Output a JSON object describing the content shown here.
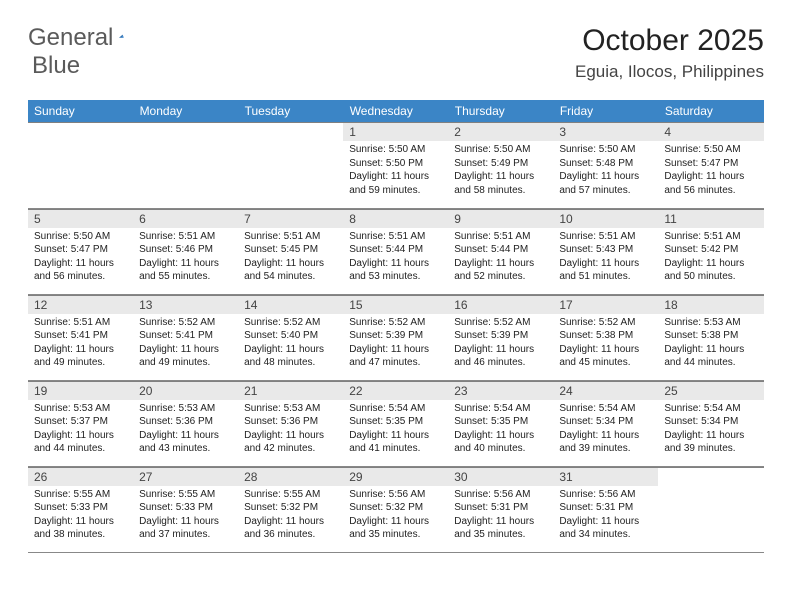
{
  "logo": {
    "text1": "General",
    "text2": "Blue"
  },
  "title": "October 2025",
  "location": "Eguia, Ilocos, Philippines",
  "colors": {
    "header_bg": "#3b85c6",
    "header_text": "#ffffff",
    "daynum_bg": "#e9e9e9",
    "border": "#808080",
    "logo_text": "#5a5a5a",
    "logo_icon": "#2f6fb0"
  },
  "dayHeaders": [
    "Sunday",
    "Monday",
    "Tuesday",
    "Wednesday",
    "Thursday",
    "Friday",
    "Saturday"
  ],
  "weeks": [
    [
      {
        "n": "",
        "sr": "",
        "ss": "",
        "dl": ""
      },
      {
        "n": "",
        "sr": "",
        "ss": "",
        "dl": ""
      },
      {
        "n": "",
        "sr": "",
        "ss": "",
        "dl": ""
      },
      {
        "n": "1",
        "sr": "5:50 AM",
        "ss": "5:50 PM",
        "dl": "11 hours and 59 minutes."
      },
      {
        "n": "2",
        "sr": "5:50 AM",
        "ss": "5:49 PM",
        "dl": "11 hours and 58 minutes."
      },
      {
        "n": "3",
        "sr": "5:50 AM",
        "ss": "5:48 PM",
        "dl": "11 hours and 57 minutes."
      },
      {
        "n": "4",
        "sr": "5:50 AM",
        "ss": "5:47 PM",
        "dl": "11 hours and 56 minutes."
      }
    ],
    [
      {
        "n": "5",
        "sr": "5:50 AM",
        "ss": "5:47 PM",
        "dl": "11 hours and 56 minutes."
      },
      {
        "n": "6",
        "sr": "5:51 AM",
        "ss": "5:46 PM",
        "dl": "11 hours and 55 minutes."
      },
      {
        "n": "7",
        "sr": "5:51 AM",
        "ss": "5:45 PM",
        "dl": "11 hours and 54 minutes."
      },
      {
        "n": "8",
        "sr": "5:51 AM",
        "ss": "5:44 PM",
        "dl": "11 hours and 53 minutes."
      },
      {
        "n": "9",
        "sr": "5:51 AM",
        "ss": "5:44 PM",
        "dl": "11 hours and 52 minutes."
      },
      {
        "n": "10",
        "sr": "5:51 AM",
        "ss": "5:43 PM",
        "dl": "11 hours and 51 minutes."
      },
      {
        "n": "11",
        "sr": "5:51 AM",
        "ss": "5:42 PM",
        "dl": "11 hours and 50 minutes."
      }
    ],
    [
      {
        "n": "12",
        "sr": "5:51 AM",
        "ss": "5:41 PM",
        "dl": "11 hours and 49 minutes."
      },
      {
        "n": "13",
        "sr": "5:52 AM",
        "ss": "5:41 PM",
        "dl": "11 hours and 49 minutes."
      },
      {
        "n": "14",
        "sr": "5:52 AM",
        "ss": "5:40 PM",
        "dl": "11 hours and 48 minutes."
      },
      {
        "n": "15",
        "sr": "5:52 AM",
        "ss": "5:39 PM",
        "dl": "11 hours and 47 minutes."
      },
      {
        "n": "16",
        "sr": "5:52 AM",
        "ss": "5:39 PM",
        "dl": "11 hours and 46 minutes."
      },
      {
        "n": "17",
        "sr": "5:52 AM",
        "ss": "5:38 PM",
        "dl": "11 hours and 45 minutes."
      },
      {
        "n": "18",
        "sr": "5:53 AM",
        "ss": "5:38 PM",
        "dl": "11 hours and 44 minutes."
      }
    ],
    [
      {
        "n": "19",
        "sr": "5:53 AM",
        "ss": "5:37 PM",
        "dl": "11 hours and 44 minutes."
      },
      {
        "n": "20",
        "sr": "5:53 AM",
        "ss": "5:36 PM",
        "dl": "11 hours and 43 minutes."
      },
      {
        "n": "21",
        "sr": "5:53 AM",
        "ss": "5:36 PM",
        "dl": "11 hours and 42 minutes."
      },
      {
        "n": "22",
        "sr": "5:54 AM",
        "ss": "5:35 PM",
        "dl": "11 hours and 41 minutes."
      },
      {
        "n": "23",
        "sr": "5:54 AM",
        "ss": "5:35 PM",
        "dl": "11 hours and 40 minutes."
      },
      {
        "n": "24",
        "sr": "5:54 AM",
        "ss": "5:34 PM",
        "dl": "11 hours and 39 minutes."
      },
      {
        "n": "25",
        "sr": "5:54 AM",
        "ss": "5:34 PM",
        "dl": "11 hours and 39 minutes."
      }
    ],
    [
      {
        "n": "26",
        "sr": "5:55 AM",
        "ss": "5:33 PM",
        "dl": "11 hours and 38 minutes."
      },
      {
        "n": "27",
        "sr": "5:55 AM",
        "ss": "5:33 PM",
        "dl": "11 hours and 37 minutes."
      },
      {
        "n": "28",
        "sr": "5:55 AM",
        "ss": "5:32 PM",
        "dl": "11 hours and 36 minutes."
      },
      {
        "n": "29",
        "sr": "5:56 AM",
        "ss": "5:32 PM",
        "dl": "11 hours and 35 minutes."
      },
      {
        "n": "30",
        "sr": "5:56 AM",
        "ss": "5:31 PM",
        "dl": "11 hours and 35 minutes."
      },
      {
        "n": "31",
        "sr": "5:56 AM",
        "ss": "5:31 PM",
        "dl": "11 hours and 34 minutes."
      },
      {
        "n": "",
        "sr": "",
        "ss": "",
        "dl": ""
      }
    ]
  ],
  "labels": {
    "sunrise": "Sunrise:",
    "sunset": "Sunset:",
    "daylight": "Daylight:"
  }
}
